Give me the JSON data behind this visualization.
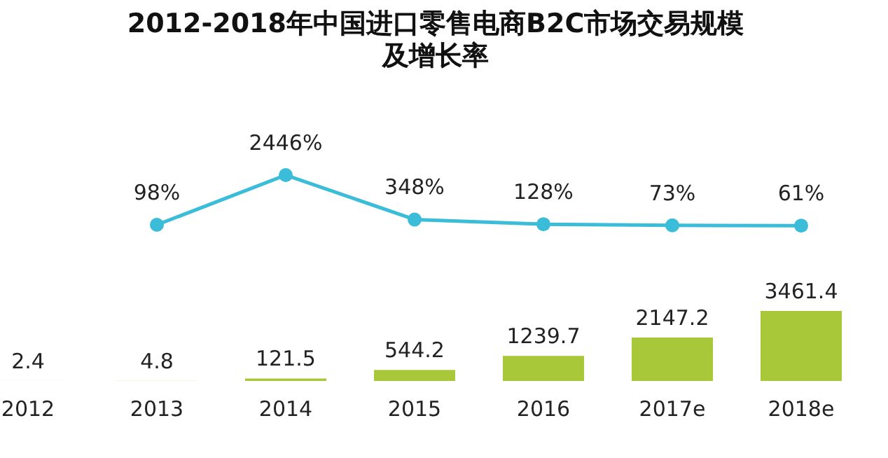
{
  "chart_data": [
    {
      "type": "line",
      "title": "2012-2018年中国进口零售电商B2C市场交易规模及增长率",
      "categories": [
        null,
        null,
        null,
        null,
        null,
        null,
        null
      ],
      "color": "#3bbcd9",
      "marker": "circle",
      "values": [
        null,
        98,
        2446,
        348,
        128,
        73,
        61
      ],
      "value_labels": [
        null,
        "98%",
        "2446%",
        "348%",
        "128%",
        "73%",
        "61%"
      ]
    },
    {
      "type": "bar",
      "categories": [
        "2012",
        "2013",
        "2014",
        "2015",
        "2016",
        "2017e",
        "2018e"
      ],
      "tick_labels": "x",
      "data_labels": true,
      "color": "#a8c83a",
      "values": [
        2.4,
        4.8,
        121.5,
        544.2,
        1239.7,
        2147.2,
        3461.4
      ]
    }
  ]
}
